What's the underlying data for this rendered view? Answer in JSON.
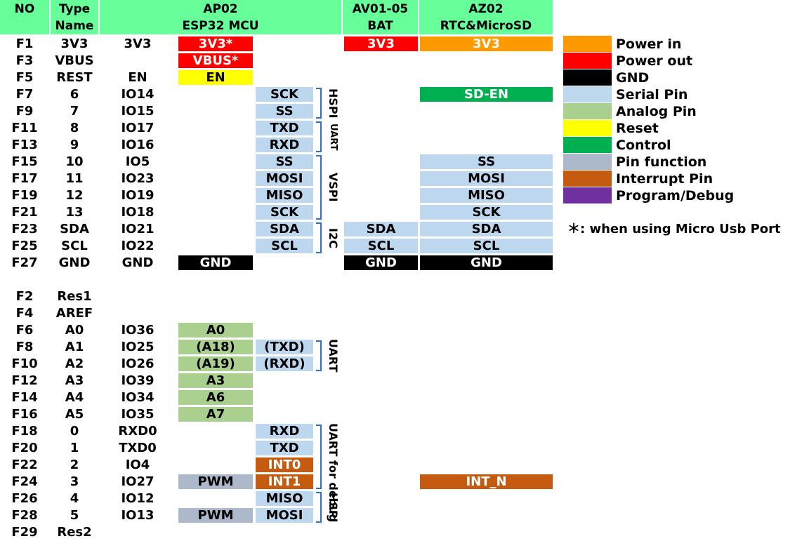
{
  "headers": {
    "no": "NO",
    "type_name": [
      "Type",
      "Name"
    ],
    "ap02": [
      "AP02",
      "ESP32 MCU"
    ],
    "av01": [
      "AV01-05",
      "BAT"
    ],
    "az02": [
      "AZ02",
      "RTC&MicroSD"
    ]
  },
  "colors": {
    "power_in": "#ff9900",
    "power_out": "#ff0000",
    "gnd": "#000000",
    "serial": "#bdd7ee",
    "analog": "#a9d08e",
    "reset": "#ffff00",
    "control": "#00b050",
    "pin_function": "#acb9ca",
    "interrupt": "#c55a11",
    "program_debug": "#7030a0",
    "header": "#66ff99",
    "bracket": "#2f6fc8"
  },
  "rows": [
    {
      "no": "F1",
      "type": "3V3",
      "io": "3V3",
      "ap1": {
        "t": "3V3*",
        "c": "power_out"
      },
      "av": {
        "t": "3V3",
        "c": "power_out"
      },
      "az": {
        "t": "3V3",
        "c": "power_in"
      }
    },
    {
      "no": "F3",
      "type": "VBUS",
      "io": "",
      "ap1": {
        "t": "VBUS*",
        "c": "power_out"
      }
    },
    {
      "no": "F5",
      "type": "REST",
      "io": "EN",
      "ap1": {
        "t": "EN",
        "c": "reset"
      }
    },
    {
      "no": "F7",
      "type": "6",
      "io": "IO14",
      "ap2": {
        "t": "SCK",
        "c": "serial"
      },
      "az": {
        "t": "SD-EN",
        "c": "control"
      }
    },
    {
      "no": "F9",
      "type": "7",
      "io": "IO15",
      "ap2": {
        "t": "SS",
        "c": "serial"
      }
    },
    {
      "no": "F11",
      "type": "8",
      "io": "IO17",
      "ap2": {
        "t": "TXD",
        "c": "serial"
      }
    },
    {
      "no": "F13",
      "type": "9",
      "io": "IO16",
      "ap2": {
        "t": "RXD",
        "c": "serial"
      }
    },
    {
      "no": "F15",
      "type": "10",
      "io": "IO5",
      "ap2": {
        "t": "SS",
        "c": "serial"
      },
      "az": {
        "t": "SS",
        "c": "serial"
      }
    },
    {
      "no": "F17",
      "type": "11",
      "io": "IO23",
      "ap2": {
        "t": "MOSI",
        "c": "serial"
      },
      "az": {
        "t": "MOSI",
        "c": "serial"
      }
    },
    {
      "no": "F19",
      "type": "12",
      "io": "IO19",
      "ap2": {
        "t": "MISO",
        "c": "serial"
      },
      "az": {
        "t": "MISO",
        "c": "serial"
      }
    },
    {
      "no": "F21",
      "type": "13",
      "io": "IO18",
      "ap2": {
        "t": "SCK",
        "c": "serial"
      },
      "az": {
        "t": "SCK",
        "c": "serial"
      }
    },
    {
      "no": "F23",
      "type": "SDA",
      "io": "IO21",
      "ap2": {
        "t": "SDA",
        "c": "serial"
      },
      "av": {
        "t": "SDA",
        "c": "serial"
      },
      "az": {
        "t": "SDA",
        "c": "serial"
      }
    },
    {
      "no": "F25",
      "type": "SCL",
      "io": "IO22",
      "ap2": {
        "t": "SCL",
        "c": "serial"
      },
      "av": {
        "t": "SCL",
        "c": "serial"
      },
      "az": {
        "t": "SCL",
        "c": "serial"
      }
    },
    {
      "no": "F27",
      "type": "GND",
      "io": "GND",
      "ap1": {
        "t": "GND",
        "c": "gnd"
      },
      "av": {
        "t": "GND",
        "c": "gnd"
      },
      "az": {
        "t": "GND",
        "c": "gnd"
      }
    },
    {
      "no": "",
      "type": "",
      "io": ""
    },
    {
      "no": "F2",
      "type": "Res1",
      "io": ""
    },
    {
      "no": "F4",
      "type": "AREF",
      "io": ""
    },
    {
      "no": "F6",
      "type": "A0",
      "io": "IO36",
      "ap1": {
        "t": "A0",
        "c": "analog"
      }
    },
    {
      "no": "F8",
      "type": "A1",
      "io": "IO25",
      "ap1": {
        "t": "(A18)",
        "c": "analog"
      },
      "ap2": {
        "t": "(TXD)",
        "c": "serial"
      }
    },
    {
      "no": "F10",
      "type": "A2",
      "io": "IO26",
      "ap1": {
        "t": "(A19)",
        "c": "analog"
      },
      "ap2": {
        "t": "(RXD)",
        "c": "serial"
      }
    },
    {
      "no": "F12",
      "type": "A3",
      "io": "IO39",
      "ap1": {
        "t": "A3",
        "c": "analog"
      }
    },
    {
      "no": "F14",
      "type": "A4",
      "io": "IO34",
      "ap1": {
        "t": "A6",
        "c": "analog"
      }
    },
    {
      "no": "F16",
      "type": "A5",
      "io": "IO35",
      "ap1": {
        "t": "A7",
        "c": "analog"
      }
    },
    {
      "no": "F18",
      "type": "0",
      "io": "RXD0",
      "ap2": {
        "t": "RXD",
        "c": "serial"
      }
    },
    {
      "no": "F20",
      "type": "1",
      "io": "TXD0",
      "ap2": {
        "t": "TXD",
        "c": "serial"
      }
    },
    {
      "no": "F22",
      "type": "2",
      "io": "IO4",
      "ap2": {
        "t": "INT0",
        "c": "interrupt"
      }
    },
    {
      "no": "F24",
      "type": "3",
      "io": "IO27",
      "ap1": {
        "t": "PWM",
        "c": "pin_function"
      },
      "ap2": {
        "t": "INT1",
        "c": "interrupt"
      },
      "az": {
        "t": "INT_N",
        "c": "interrupt"
      }
    },
    {
      "no": "F26",
      "type": "4",
      "io": "IO12",
      "ap2": {
        "t": "MISO",
        "c": "serial"
      }
    },
    {
      "no": "F28",
      "type": "5",
      "io": "IO13",
      "ap1": {
        "t": "PWM",
        "c": "pin_function"
      },
      "ap2": {
        "t": "MOSI",
        "c": "serial"
      }
    },
    {
      "no": "F29",
      "type": "Res2",
      "io": ""
    }
  ],
  "groups": [
    {
      "label": "HSPI",
      "from": 3,
      "to": 4
    },
    {
      "label": "UART",
      "from": 5,
      "to": 6,
      "small": true
    },
    {
      "label": "VSPI",
      "from": 7,
      "to": 10
    },
    {
      "label": "I2C",
      "from": 11,
      "to": 12
    },
    {
      "label": "UART",
      "from": 18,
      "to": 19
    },
    {
      "label": "UART for debug",
      "from": 23,
      "to": 26
    },
    {
      "label": "HSPI",
      "from": 27,
      "to": 28
    }
  ],
  "legend": [
    {
      "label": "Power in",
      "c": "power_in"
    },
    {
      "label": "Power out",
      "c": "power_out"
    },
    {
      "label": "GND",
      "c": "gnd"
    },
    {
      "label": "Serial Pin",
      "c": "serial"
    },
    {
      "label": "Analog Pin",
      "c": "analog"
    },
    {
      "label": "Reset",
      "c": "reset"
    },
    {
      "label": "Control",
      "c": "control"
    },
    {
      "label": "Pin function",
      "c": "pin_function"
    },
    {
      "label": "Interrupt Pin",
      "c": "interrupt"
    },
    {
      "label": "Program/Debug",
      "c": "program_debug"
    }
  ],
  "note": "＊: when using Micro Usb Port"
}
